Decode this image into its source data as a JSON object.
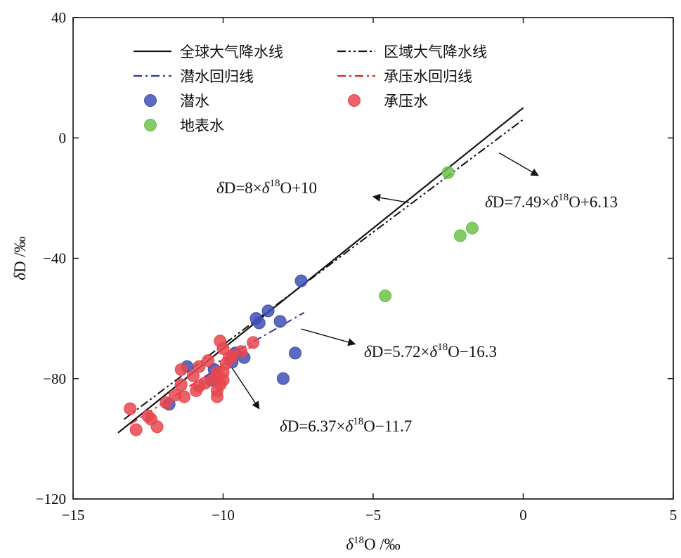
{
  "chart_data": {
    "type": "scatter",
    "xlabel": "δ¹⁸O /‰",
    "ylabel": "δD /‰",
    "xlim": [
      -15,
      5
    ],
    "ylim": [
      -120,
      40
    ],
    "xticks": [
      -15,
      -10,
      -5,
      0,
      5
    ],
    "yticks": [
      -120,
      -80,
      -40,
      0,
      40
    ],
    "xtick_labels": [
      "−15",
      "−10",
      "−5",
      "0",
      "5"
    ],
    "ytick_labels": [
      "−120",
      "−80",
      "−40",
      "0",
      "40"
    ],
    "grid": false,
    "legend_position": "top",
    "series": [
      {
        "name": "潜水",
        "kind": "points",
        "color": "#3f51b5",
        "points": [
          [
            -7.4,
            -47.5
          ],
          [
            -8.5,
            -57.5
          ],
          [
            -8.9,
            -60
          ],
          [
            -8.8,
            -61.5
          ],
          [
            -8.1,
            -61
          ],
          [
            -7.6,
            -71.5
          ],
          [
            -8.0,
            -80
          ],
          [
            -9.3,
            -73
          ],
          [
            -9.6,
            -71.5
          ],
          [
            -9.7,
            -74.5
          ],
          [
            -10.3,
            -77
          ],
          [
            -10.4,
            -80.5
          ],
          [
            -11.2,
            -76
          ],
          [
            -11.8,
            -88.5
          ]
        ]
      },
      {
        "name": "承压水",
        "kind": "points",
        "color": "#e8474e",
        "points": [
          [
            -13.1,
            -90
          ],
          [
            -12.9,
            -97
          ],
          [
            -12.5,
            -92.5
          ],
          [
            -12.4,
            -93.5
          ],
          [
            -12.2,
            -96
          ],
          [
            -11.9,
            -88
          ],
          [
            -11.6,
            -85.5
          ],
          [
            -11.3,
            -86
          ],
          [
            -11.4,
            -82
          ],
          [
            -11.4,
            -77
          ],
          [
            -11.0,
            -79
          ],
          [
            -10.9,
            -84
          ],
          [
            -10.8,
            -82.5
          ],
          [
            -10.8,
            -76
          ],
          [
            -10.6,
            -81.5
          ],
          [
            -10.5,
            -74
          ],
          [
            -10.3,
            -80
          ],
          [
            -10.2,
            -78
          ],
          [
            -10.2,
            -84
          ],
          [
            -10.1,
            -82
          ],
          [
            -10.0,
            -80.5
          ],
          [
            -10.0,
            -78
          ],
          [
            -10.1,
            -67.5
          ],
          [
            -10.0,
            -70
          ],
          [
            -9.9,
            -75
          ],
          [
            -9.8,
            -73
          ],
          [
            -9.7,
            -72.5
          ],
          [
            -9.4,
            -71
          ],
          [
            -9.0,
            -68
          ],
          [
            -10.2,
            -86
          ]
        ]
      },
      {
        "name": "地表水",
        "kind": "points",
        "color": "#6cc24a",
        "points": [
          [
            -2.5,
            -11.5
          ],
          [
            -2.1,
            -32.5
          ],
          [
            -1.7,
            -30
          ],
          [
            -4.6,
            -52.5
          ]
        ]
      },
      {
        "name": "全球大气降水线",
        "kind": "line",
        "color": "#111111",
        "dash": "solid",
        "slope": 8,
        "intercept": 10,
        "x_range": [
          -13.5,
          0
        ]
      },
      {
        "name": "区域大气降水线",
        "kind": "line",
        "color": "#111111",
        "dash": "dash-dot-dot",
        "slope": 7.49,
        "intercept": 6.13,
        "x_range": [
          -13.3,
          0
        ]
      },
      {
        "name": "潜水回归线",
        "kind": "line",
        "color": "#2a3a9e",
        "dash": "dash-dot",
        "slope": 5.72,
        "intercept": -16.3,
        "x_range": [
          -10.5,
          -7.3
        ]
      },
      {
        "name": "承压水回归线",
        "kind": "line",
        "color": "#e02020",
        "dash": "dash-dot",
        "slope": 6.37,
        "intercept": -11.7,
        "x_range": [
          -13.1,
          -9.0
        ]
      }
    ],
    "annotations": [
      {
        "text_parts": [
          "δ",
          "D=8×",
          "δ",
          "18",
          "O+10"
        ],
        "arrow_to": [
          -5.0,
          -19.5
        ],
        "arrow_from": [
          -3.8,
          -21.5
        ]
      },
      {
        "text_parts": [
          "δ",
          "D=7.49×",
          "δ",
          "18",
          "O+6.13"
        ],
        "arrow_to": [
          0.5,
          -12.5
        ],
        "arrow_from": [
          -0.8,
          -5.0
        ]
      },
      {
        "text_parts": [
          "δ",
          "D=5.72×",
          "δ",
          "18",
          "O−16.3"
        ],
        "arrow_to": [
          -5.6,
          -68.5
        ],
        "arrow_from": [
          -7.4,
          -63.5
        ]
      },
      {
        "text_parts": [
          "δ",
          "D=6.37×",
          "δ",
          "18",
          "O−11.7"
        ],
        "arrow_to": [
          -8.8,
          -90.0
        ],
        "arrow_from": [
          -9.7,
          -76.5
        ]
      }
    ]
  }
}
